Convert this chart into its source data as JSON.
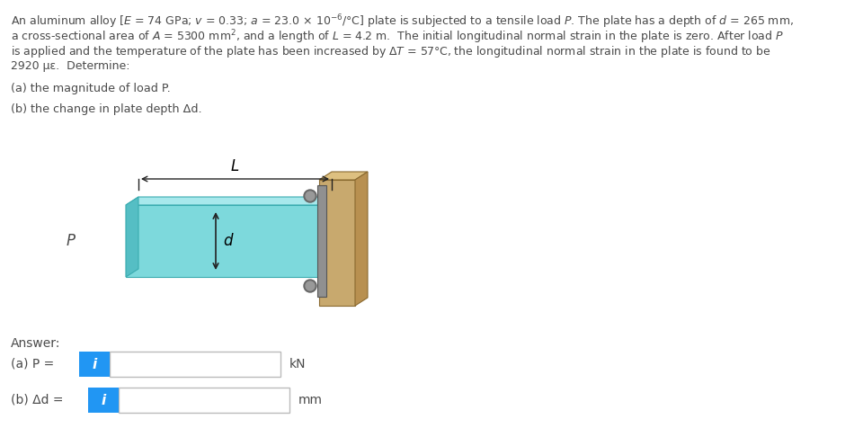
{
  "question_lines": [
    "An aluminum alloy [$E$ = 74 GPa; $v$ = 0.33; $a$ = 23.0 × 10$^{-6}$/°C] plate is subjected to a tensile load $P$. The plate has a depth of $d$ = 265 mm,",
    "a cross-sectional area of $A$ = 5300 mm$^2$, and a length of $L$ = 4.2 m.  The initial longitudinal normal strain in the plate is zero. After load $P$",
    "is applied and the temperature of the plate has been increased by Δ$T$ = 57°C, the longitudinal normal strain in the plate is found to be",
    "2920 με.  Determine:"
  ],
  "question_a": "(a) the magnitude of load P.",
  "question_b": "(b) the change in plate depth Δd.",
  "answer_label": "Answer:",
  "answer_a_label": "(a) P = ",
  "answer_b_label": "(b) Δd = ",
  "unit_a": "kN",
  "unit_b": "mm",
  "bg_color": "#ffffff",
  "text_color": "#4a4a4a",
  "plate_color_top": "#a8e8ec",
  "plate_color_front": "#7dd9dc",
  "plate_color_side": "#55bec2",
  "wall_color_front": "#c8a96e",
  "wall_color_top": "#ddc080",
  "wall_color_side": "#b89050",
  "flange_color": "#888888",
  "bolt_outer": "#666666",
  "bolt_inner": "#999999",
  "arrow_color": "#dd2222",
  "dim_line_color": "#222222",
  "blue_btn_color": "#2196F3",
  "input_border": "#bbbbbb"
}
